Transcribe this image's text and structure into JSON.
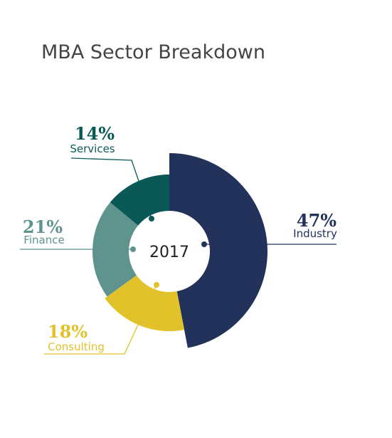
{
  "chart_data": {
    "type": "pie",
    "title": "MBA Sector Breakdown",
    "center_label": "2017",
    "categories": [
      "Industry",
      "Consulting",
      "Finance",
      "Services"
    ],
    "values": [
      47,
      18,
      21,
      14
    ],
    "value_labels": [
      "47%",
      "18%",
      "21%",
      "14%"
    ],
    "colors": [
      "#22325a",
      "#e2c22a",
      "#5f948e",
      "#0b5957"
    ]
  }
}
